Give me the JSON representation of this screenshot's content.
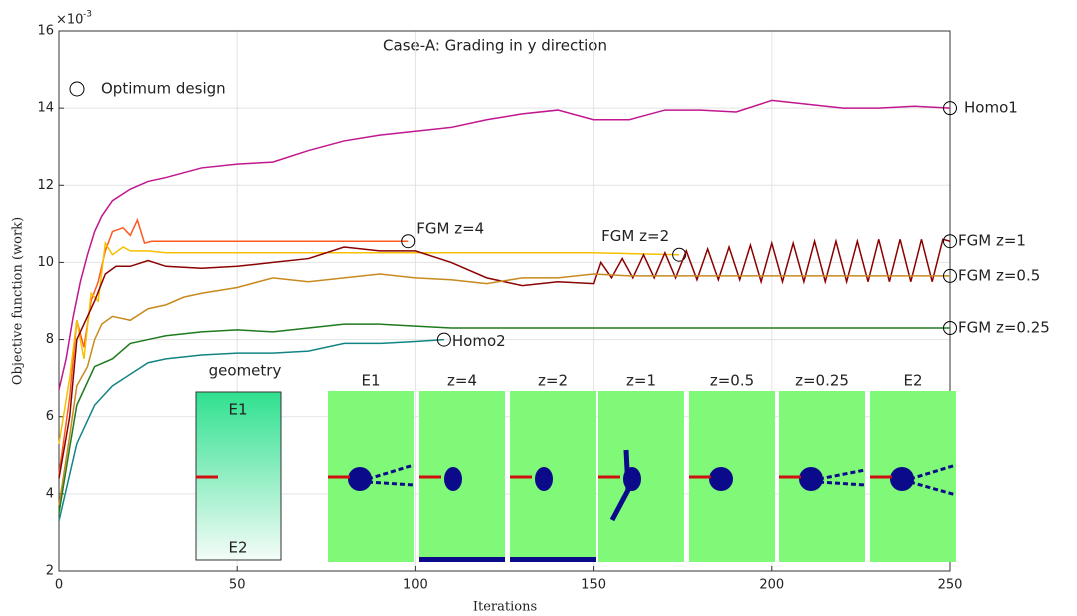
{
  "chart_data": {
    "type": "line",
    "title": "Case-A: Grading in y direction",
    "xlabel": "Iterations",
    "ylabel": "Objective function (work)",
    "y_multiplier": "×10",
    "y_exponent": "-3",
    "legend_text": "Optimum design",
    "xlim": [
      0,
      250
    ],
    "xticks": [
      0,
      50,
      100,
      150,
      200,
      250
    ],
    "ylim": [
      2,
      16
    ],
    "yticks": [
      2,
      4,
      6,
      8,
      10,
      12,
      14,
      16
    ],
    "grid": true,
    "series": [
      {
        "name": "Homo1",
        "color": "#c0168f",
        "x": [
          0,
          2,
          4,
          6,
          8,
          10,
          12,
          15,
          20,
          25,
          30,
          40,
          50,
          60,
          70,
          80,
          90,
          100,
          110,
          120,
          130,
          140,
          150,
          160,
          170,
          180,
          190,
          200,
          210,
          220,
          230,
          240,
          250
        ],
        "values": [
          6.7,
          7.5,
          8.6,
          9.5,
          10.2,
          10.8,
          11.2,
          11.6,
          11.9,
          12.1,
          12.2,
          12.45,
          12.55,
          12.6,
          12.9,
          13.15,
          13.3,
          13.4,
          13.5,
          13.7,
          13.85,
          13.95,
          13.7,
          13.7,
          13.95,
          13.95,
          13.9,
          14.2,
          14.1,
          14.0,
          14.0,
          14.05,
          14.0
        ]
      },
      {
        "name": "FGM z=4",
        "color": "#ff5a1e",
        "x": [
          0,
          3,
          5,
          7,
          9,
          11,
          13,
          15,
          18,
          20,
          22,
          24,
          26,
          30,
          40,
          50,
          60,
          70,
          80,
          90,
          98
        ],
        "values": [
          4.5,
          6.5,
          8.5,
          7.8,
          9.0,
          9.5,
          10.3,
          10.8,
          10.9,
          10.7,
          11.1,
          10.5,
          10.55,
          10.55,
          10.55,
          10.55,
          10.55,
          10.55,
          10.55,
          10.55,
          10.55
        ]
      },
      {
        "name": "FGM z=2",
        "color": "#f5c000",
        "x": [
          0,
          3,
          5,
          7,
          9,
          11,
          13,
          15,
          18,
          20,
          25,
          30,
          40,
          50,
          60,
          80,
          100,
          120,
          150,
          174
        ],
        "values": [
          5.3,
          7.0,
          8.5,
          7.5,
          9.2,
          9.0,
          10.5,
          10.2,
          10.4,
          10.3,
          10.3,
          10.25,
          10.25,
          10.25,
          10.25,
          10.25,
          10.25,
          10.25,
          10.25,
          10.2
        ]
      },
      {
        "name": "FGM z=1",
        "color": "#8b0000",
        "x": [
          0,
          3,
          5,
          8,
          10,
          13,
          16,
          20,
          25,
          30,
          40,
          50,
          60,
          70,
          80,
          90,
          100,
          110,
          120,
          130,
          140,
          150,
          152,
          155,
          158,
          161,
          164,
          167,
          170,
          173,
          176,
          179,
          182,
          185,
          188,
          191,
          194,
          197,
          200,
          203,
          206,
          209,
          212,
          215,
          218,
          221,
          224,
          227,
          230,
          233,
          236,
          239,
          242,
          245,
          248,
          250
        ],
        "values": [
          4.4,
          6.0,
          8.0,
          8.6,
          9.0,
          9.7,
          9.9,
          9.9,
          10.05,
          9.9,
          9.85,
          9.9,
          10.0,
          10.1,
          10.4,
          10.3,
          10.3,
          10.0,
          9.6,
          9.4,
          9.5,
          9.45,
          10.0,
          9.6,
          10.1,
          9.6,
          10.2,
          9.6,
          10.25,
          9.6,
          10.3,
          9.55,
          10.35,
          9.55,
          10.4,
          9.55,
          10.45,
          9.5,
          10.5,
          9.5,
          10.5,
          9.5,
          10.55,
          9.5,
          10.55,
          9.5,
          10.55,
          9.5,
          10.6,
          9.5,
          10.6,
          9.5,
          10.6,
          9.5,
          10.6,
          10.55
        ]
      },
      {
        "name": "FGM z=0.5",
        "color": "#c88a1e",
        "x": [
          0,
          3,
          5,
          8,
          10,
          12,
          15,
          20,
          25,
          30,
          35,
          40,
          50,
          60,
          70,
          80,
          90,
          100,
          110,
          120,
          130,
          140,
          150,
          160,
          180,
          200,
          220,
          250
        ],
        "values": [
          3.7,
          5.5,
          6.8,
          7.3,
          8.0,
          8.4,
          8.6,
          8.5,
          8.8,
          8.9,
          9.1,
          9.2,
          9.35,
          9.6,
          9.5,
          9.6,
          9.7,
          9.6,
          9.55,
          9.45,
          9.6,
          9.6,
          9.7,
          9.65,
          9.65,
          9.65,
          9.65,
          9.65
        ]
      },
      {
        "name": "FGM z=0.25",
        "color": "#1e7a1e",
        "x": [
          0,
          3,
          5,
          8,
          10,
          15,
          20,
          25,
          30,
          40,
          50,
          60,
          70,
          80,
          90,
          100,
          110,
          120,
          150,
          200,
          250
        ],
        "values": [
          3.5,
          5.2,
          6.3,
          6.9,
          7.3,
          7.5,
          7.9,
          8.0,
          8.1,
          8.2,
          8.25,
          8.2,
          8.3,
          8.4,
          8.4,
          8.35,
          8.3,
          8.3,
          8.3,
          8.3,
          8.3
        ]
      },
      {
        "name": "Homo2",
        "color": "#138484",
        "x": [
          0,
          3,
          5,
          8,
          10,
          15,
          20,
          25,
          30,
          40,
          50,
          60,
          70,
          80,
          90,
          100,
          108
        ],
        "values": [
          3.3,
          4.5,
          5.3,
          5.9,
          6.3,
          6.8,
          7.1,
          7.4,
          7.5,
          7.6,
          7.65,
          7.65,
          7.7,
          7.9,
          7.9,
          7.95,
          8.0
        ]
      }
    ],
    "inset": {
      "geometry_label": "geometry",
      "top_label": "E1",
      "bottom_label": "E2",
      "images": [
        "E1",
        "z=4",
        "z=2",
        "z=1",
        "z=0.5",
        "z=0.25",
        "E2"
      ]
    }
  }
}
